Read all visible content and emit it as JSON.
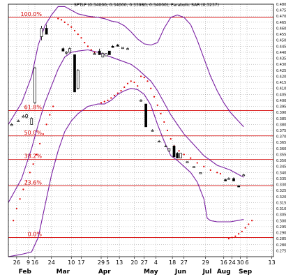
{
  "chart_data": {
    "type": "candlestick",
    "title": "SPTLF (0.34000, 0.34000, 0.33980, 0.34000), Parabolic SAR (0.3237)",
    "ylim": [
      0.27,
      0.48
    ],
    "y_ticks": [
      "0.480",
      "0.475",
      "0.470",
      "0.465",
      "0.460",
      "0.455",
      "0.450",
      "0.445",
      "0.440",
      "0.435",
      "0.430",
      "0.425",
      "0.420",
      "0.415",
      "0.410",
      "0.405",
      "0.400",
      "0.395",
      "0.390",
      "0.385",
      "0.380",
      "0.375",
      "0.370",
      "0.365",
      "0.360",
      "0.355",
      "0.350",
      "0.345",
      "0.340",
      "0.335",
      "0.330",
      "0.325",
      "0.320",
      "0.315",
      "0.310",
      "0.305",
      "0.300",
      "0.295",
      "0.290",
      "0.285",
      "0.280",
      "0.275"
    ],
    "x_ticks": [
      {
        "label": "26",
        "x": 5
      },
      {
        "label": "9",
        "x": 12
      },
      {
        "label": "16",
        "x": 16
      },
      {
        "label": "24",
        "x": 26
      },
      {
        "label": "10",
        "x": 38
      },
      {
        "label": "17",
        "x": 44
      },
      {
        "label": "29",
        "x": 56
      },
      {
        "label": "5",
        "x": 60
      },
      {
        "label": "13",
        "x": 67
      },
      {
        "label": "20",
        "x": 76
      },
      {
        "label": "27",
        "x": 82
      },
      {
        "label": "4",
        "x": 89
      },
      {
        "label": "18",
        "x": 99
      },
      {
        "label": "27",
        "x": 106
      },
      {
        "label": "29",
        "x": 119
      },
      {
        "label": "16",
        "x": 130
      },
      {
        "label": "24",
        "x": 135
      },
      {
        "label": "30",
        "x": 140
      },
      {
        "label": "6",
        "x": 144
      },
      {
        "label": "13",
        "x": 159
      }
    ],
    "months": [
      {
        "label": "Feb",
        "x": 10
      },
      {
        "label": "Mar",
        "x": 33
      },
      {
        "label": "Apr",
        "x": 58
      },
      {
        "label": "May",
        "x": 86
      },
      {
        "label": "Jun",
        "x": 104
      },
      {
        "label": "Jul",
        "x": 120
      },
      {
        "label": "Aug",
        "x": 130
      },
      {
        "label": "Sep",
        "x": 143
      }
    ],
    "fib_levels": [
      {
        "label": "100.0%",
        "value": 0.469
      },
      {
        "label": "61.8%",
        "value": 0.3915
      },
      {
        "label": "50.0%",
        "value": 0.3705
      },
      {
        "label": "38.2%",
        "value": 0.351
      },
      {
        "label": "23.6%",
        "value": 0.329
      },
      {
        "label": "0.0%",
        "value": 0.286
      }
    ],
    "candles": [
      {
        "x": 2,
        "o": 0.379,
        "h": 0.381,
        "l": 0.379,
        "c": 0.38
      },
      {
        "x": 6,
        "o": 0.383,
        "h": 0.384,
        "l": 0.383,
        "c": 0.383
      },
      {
        "x": 9,
        "o": 0.386,
        "h": 0.388,
        "l": 0.386,
        "c": 0.387
      },
      {
        "x": 11,
        "o": 0.386,
        "h": 0.389,
        "l": 0.385,
        "c": 0.388
      },
      {
        "x": 14,
        "o": 0.38,
        "h": 0.386,
        "l": 0.38,
        "c": 0.385
      },
      {
        "x": 16,
        "o": 0.398,
        "h": 0.428,
        "l": 0.397,
        "c": 0.427
      },
      {
        "x": 20,
        "o": 0.453,
        "h": 0.462,
        "l": 0.45,
        "c": 0.46
      },
      {
        "x": 23,
        "o": 0.46,
        "h": 0.463,
        "l": 0.455,
        "c": 0.455
      },
      {
        "x": 33,
        "o": 0.443,
        "h": 0.444,
        "l": 0.441,
        "c": 0.441
      },
      {
        "x": 35,
        "o": 0.44,
        "h": 0.441,
        "l": 0.438,
        "c": 0.44
      },
      {
        "x": 37,
        "o": 0.44,
        "h": 0.444,
        "l": 0.44,
        "c": 0.443
      },
      {
        "x": 40,
        "o": 0.438,
        "h": 0.438,
        "l": 0.407,
        "c": 0.407
      },
      {
        "x": 42,
        "o": 0.41,
        "h": 0.426,
        "l": 0.409,
        "c": 0.425
      },
      {
        "x": 52,
        "o": 0.438,
        "h": 0.44,
        "l": 0.438,
        "c": 0.439
      },
      {
        "x": 55,
        "o": 0.441,
        "h": 0.443,
        "l": 0.438,
        "c": 0.438
      },
      {
        "x": 57,
        "o": 0.436,
        "h": 0.44,
        "l": 0.436,
        "c": 0.439
      },
      {
        "x": 59,
        "o": 0.437,
        "h": 0.439,
        "l": 0.437,
        "c": 0.439
      },
      {
        "x": 61,
        "o": 0.441,
        "h": 0.441,
        "l": 0.438,
        "c": 0.438
      },
      {
        "x": 63,
        "o": 0.445,
        "h": 0.446,
        "l": 0.444,
        "c": 0.444
      },
      {
        "x": 66,
        "o": 0.446,
        "h": 0.447,
        "l": 0.445,
        "c": 0.445
      },
      {
        "x": 69,
        "o": 0.443,
        "h": 0.444,
        "l": 0.443,
        "c": 0.444
      },
      {
        "x": 72,
        "o": 0.443,
        "h": 0.444,
        "l": 0.443,
        "c": 0.443
      },
      {
        "x": 80,
        "o": 0.4,
        "h": 0.401,
        "l": 0.399,
        "c": 0.4
      },
      {
        "x": 83,
        "o": 0.397,
        "h": 0.397,
        "l": 0.378,
        "c": 0.378
      },
      {
        "x": 87,
        "o": 0.375,
        "h": 0.376,
        "l": 0.375,
        "c": 0.375
      },
      {
        "x": 91,
        "o": 0.366,
        "h": 0.367,
        "l": 0.366,
        "c": 0.366
      },
      {
        "x": 95,
        "o": 0.362,
        "h": 0.363,
        "l": 0.362,
        "c": 0.362
      },
      {
        "x": 97,
        "o": 0.358,
        "h": 0.36,
        "l": 0.357,
        "c": 0.36
      },
      {
        "x": 100,
        "o": 0.362,
        "h": 0.363,
        "l": 0.353,
        "c": 0.353
      },
      {
        "x": 102,
        "o": 0.356,
        "h": 0.357,
        "l": 0.352,
        "c": 0.352
      },
      {
        "x": 104,
        "o": 0.352,
        "h": 0.356,
        "l": 0.352,
        "c": 0.356
      },
      {
        "x": 108,
        "o": 0.348,
        "h": 0.349,
        "l": 0.348,
        "c": 0.349
      },
      {
        "x": 112,
        "o": 0.344,
        "h": 0.345,
        "l": 0.344,
        "c": 0.345
      },
      {
        "x": 116,
        "o": 0.339,
        "h": 0.34,
        "l": 0.339,
        "c": 0.34
      },
      {
        "x": 131,
        "o": 0.334,
        "h": 0.335,
        "l": 0.333,
        "c": 0.333
      },
      {
        "x": 133,
        "o": 0.335,
        "h": 0.336,
        "l": 0.335,
        "c": 0.335
      },
      {
        "x": 136,
        "o": 0.335,
        "h": 0.336,
        "l": 0.333,
        "c": 0.333
      },
      {
        "x": 139,
        "o": 0.329,
        "h": 0.329,
        "l": 0.328,
        "c": 0.328
      },
      {
        "x": 142,
        "o": 0.338,
        "h": 0.339,
        "l": 0.338,
        "c": 0.338
      }
    ],
    "sar": [
      {
        "x": 3,
        "y": 0.3
      },
      {
        "x": 5,
        "y": 0.31
      },
      {
        "x": 7,
        "y": 0.318
      },
      {
        "x": 9,
        "y": 0.326
      },
      {
        "x": 11,
        "y": 0.333
      },
      {
        "x": 13,
        "y": 0.34
      },
      {
        "x": 15,
        "y": 0.347
      },
      {
        "x": 17,
        "y": 0.355
      },
      {
        "x": 19,
        "y": 0.364
      },
      {
        "x": 21,
        "y": 0.372
      },
      {
        "x": 23,
        "y": 0.38
      },
      {
        "x": 25,
        "y": 0.388
      },
      {
        "x": 27,
        "y": 0.395
      },
      {
        "x": 30,
        "y": 0.468
      },
      {
        "x": 32,
        "y": 0.467
      },
      {
        "x": 34,
        "y": 0.465
      },
      {
        "x": 36,
        "y": 0.463
      },
      {
        "x": 38,
        "y": 0.461
      },
      {
        "x": 40,
        "y": 0.458
      },
      {
        "x": 42,
        "y": 0.455
      },
      {
        "x": 44,
        "y": 0.452
      },
      {
        "x": 46,
        "y": 0.448
      },
      {
        "x": 48,
        "y": 0.445
      },
      {
        "x": 50,
        "y": 0.442
      },
      {
        "x": 52,
        "y": 0.44
      },
      {
        "x": 56,
        "y": 0.398
      },
      {
        "x": 58,
        "y": 0.399
      },
      {
        "x": 60,
        "y": 0.4
      },
      {
        "x": 62,
        "y": 0.402
      },
      {
        "x": 64,
        "y": 0.404
      },
      {
        "x": 66,
        "y": 0.406
      },
      {
        "x": 68,
        "y": 0.408
      },
      {
        "x": 70,
        "y": 0.411
      },
      {
        "x": 72,
        "y": 0.414
      },
      {
        "x": 74,
        "y": 0.416
      },
      {
        "x": 76,
        "y": 0.415
      },
      {
        "x": 78,
        "y": 0.412
      },
      {
        "x": 80,
        "y": 0.42
      },
      {
        "x": 82,
        "y": 0.419
      },
      {
        "x": 84,
        "y": 0.416
      },
      {
        "x": 86,
        "y": 0.41
      },
      {
        "x": 88,
        "y": 0.403
      },
      {
        "x": 90,
        "y": 0.396
      },
      {
        "x": 92,
        "y": 0.389
      },
      {
        "x": 94,
        "y": 0.382
      },
      {
        "x": 96,
        "y": 0.375
      },
      {
        "x": 98,
        "y": 0.368
      },
      {
        "x": 100,
        "y": 0.362
      },
      {
        "x": 103,
        "y": 0.358
      },
      {
        "x": 106,
        "y": 0.355
      },
      {
        "x": 110,
        "y": 0.352
      },
      {
        "x": 114,
        "y": 0.348
      },
      {
        "x": 118,
        "y": 0.345
      },
      {
        "x": 122,
        "y": 0.342
      },
      {
        "x": 126,
        "y": 0.34
      },
      {
        "x": 128,
        "y": 0.339
      },
      {
        "x": 133,
        "y": 0.285
      },
      {
        "x": 135,
        "y": 0.286
      },
      {
        "x": 137,
        "y": 0.287
      },
      {
        "x": 139,
        "y": 0.289
      },
      {
        "x": 141,
        "y": 0.291
      },
      {
        "x": 143,
        "y": 0.294
      },
      {
        "x": 145,
        "y": 0.297
      },
      {
        "x": 147,
        "y": 0.3
      }
    ],
    "bands": [
      {
        "name": "upper",
        "points": [
          [
            0,
            0.38
          ],
          [
            8,
            0.398
          ],
          [
            14,
            0.42
          ],
          [
            18,
            0.446
          ],
          [
            22,
            0.462
          ],
          [
            26,
            0.471
          ],
          [
            30,
            0.478
          ],
          [
            34,
            0.478
          ],
          [
            38,
            0.475
          ],
          [
            42,
            0.472
          ],
          [
            48,
            0.47
          ],
          [
            54,
            0.469
          ],
          [
            58,
            0.468
          ],
          [
            62,
            0.466
          ],
          [
            66,
            0.465
          ],
          [
            70,
            0.462
          ],
          [
            74,
            0.457
          ],
          [
            78,
            0.451
          ],
          [
            82,
            0.447
          ],
          [
            86,
            0.446
          ],
          [
            90,
            0.448
          ],
          [
            94,
            0.46
          ],
          [
            98,
            0.469
          ],
          [
            102,
            0.471
          ],
          [
            106,
            0.469
          ],
          [
            110,
            0.463
          ],
          [
            114,
            0.45
          ],
          [
            118,
            0.435
          ],
          [
            122,
            0.42
          ],
          [
            126,
            0.408
          ],
          [
            130,
            0.398
          ],
          [
            134,
            0.39
          ],
          [
            138,
            0.384
          ],
          [
            142,
            0.378
          ]
        ]
      },
      {
        "name": "middle",
        "points": [
          [
            0,
            0.315
          ],
          [
            8,
            0.335
          ],
          [
            14,
            0.36
          ],
          [
            18,
            0.38
          ],
          [
            22,
            0.398
          ],
          [
            26,
            0.412
          ],
          [
            30,
            0.426
          ],
          [
            34,
            0.436
          ],
          [
            38,
            0.44
          ],
          [
            42,
            0.441
          ],
          [
            48,
            0.442
          ],
          [
            54,
            0.44
          ],
          [
            58,
            0.438
          ],
          [
            62,
            0.436
          ],
          [
            66,
            0.434
          ],
          [
            70,
            0.432
          ],
          [
            74,
            0.43
          ],
          [
            78,
            0.426
          ],
          [
            82,
            0.421
          ],
          [
            86,
            0.416
          ],
          [
            90,
            0.408
          ],
          [
            94,
            0.398
          ],
          [
            98,
            0.388
          ],
          [
            102,
            0.38
          ],
          [
            106,
            0.372
          ],
          [
            110,
            0.366
          ],
          [
            114,
            0.36
          ],
          [
            118,
            0.354
          ],
          [
            122,
            0.35
          ],
          [
            126,
            0.346
          ],
          [
            130,
            0.344
          ],
          [
            134,
            0.342
          ],
          [
            138,
            0.339
          ],
          [
            142,
            0.336
          ]
        ]
      },
      {
        "name": "lower",
        "points": [
          [
            0,
            0.27
          ],
          [
            8,
            0.272
          ],
          [
            14,
            0.274
          ],
          [
            18,
            0.286
          ],
          [
            22,
            0.312
          ],
          [
            26,
            0.338
          ],
          [
            30,
            0.358
          ],
          [
            34,
            0.374
          ],
          [
            38,
            0.383
          ],
          [
            42,
            0.389
          ],
          [
            48,
            0.395
          ],
          [
            54,
            0.397
          ],
          [
            58,
            0.397
          ],
          [
            62,
            0.4
          ],
          [
            66,
            0.405
          ],
          [
            70,
            0.408
          ],
          [
            74,
            0.41
          ],
          [
            78,
            0.409
          ],
          [
            82,
            0.405
          ],
          [
            86,
            0.396
          ],
          [
            90,
            0.38
          ],
          [
            94,
            0.366
          ],
          [
            98,
            0.354
          ],
          [
            102,
            0.35
          ],
          [
            106,
            0.345
          ],
          [
            110,
            0.34
          ],
          [
            114,
            0.332
          ],
          [
            118,
            0.318
          ],
          [
            120,
            0.302
          ],
          [
            122,
            0.3
          ],
          [
            126,
            0.299
          ],
          [
            130,
            0.299
          ],
          [
            134,
            0.299
          ],
          [
            138,
            0.3
          ],
          [
            142,
            0.301
          ]
        ]
      }
    ],
    "colors": {
      "candle": "#000000",
      "sar": "#e00000",
      "band": "#7a1fa2",
      "fib": "#d40000",
      "grid": "#7f7f7f"
    }
  }
}
